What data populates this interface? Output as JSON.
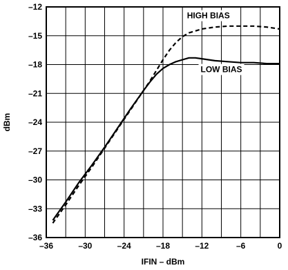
{
  "chart_data": {
    "type": "line",
    "xlabel": "IFIN – dBm",
    "ylabel": "dBm",
    "xlim": [
      -36,
      0
    ],
    "ylim": [
      -36,
      -12
    ],
    "grid": true,
    "x_ticks": [
      -36,
      -30,
      -24,
      -18,
      -12,
      -6,
      0
    ],
    "x_tick_labels": [
      "–36",
      "–30",
      "–24",
      "–18",
      "–12",
      "–6",
      "0"
    ],
    "y_ticks": [
      -12,
      -15,
      -18,
      -21,
      -24,
      -27,
      -30,
      -33,
      -36
    ],
    "y_tick_labels": [
      "–12",
      "–15",
      "–18",
      "–21",
      "–24",
      "–27",
      "–30",
      "–33",
      "–36"
    ],
    "series": [
      {
        "name": "HIGH BIAS",
        "line_style": "dashed",
        "x": [
          -35,
          -33,
          -31,
          -29,
          -27,
          -25,
          -23,
          -21,
          -20,
          -19,
          -18,
          -17,
          -16,
          -15,
          -14,
          -13,
          -12,
          -11,
          -10,
          -8,
          -6,
          -4,
          -2,
          0
        ],
        "y": [
          -34.5,
          -32.6,
          -30.6,
          -28.7,
          -26.7,
          -24.7,
          -22.7,
          -20.7,
          -19.7,
          -18.6,
          -17.5,
          -16.5,
          -15.7,
          -15.1,
          -14.7,
          -14.5,
          -14.3,
          -14.2,
          -14.1,
          -14.0,
          -14.0,
          -14.0,
          -14.1,
          -14.3
        ]
      },
      {
        "name": "LOW BIAS",
        "line_style": "solid",
        "x": [
          -35,
          -33,
          -31,
          -29,
          -27,
          -25,
          -23,
          -21,
          -20,
          -19,
          -18,
          -17,
          -16,
          -15,
          -14,
          -13,
          -12,
          -11,
          -10,
          -8,
          -6,
          -4,
          -2,
          0
        ],
        "y": [
          -34.2,
          -32.3,
          -30.3,
          -28.5,
          -26.6,
          -24.6,
          -22.6,
          -20.7,
          -19.8,
          -19.0,
          -18.4,
          -18.0,
          -17.7,
          -17.5,
          -17.3,
          -17.3,
          -17.4,
          -17.5,
          -17.6,
          -17.7,
          -17.8,
          -17.8,
          -17.9,
          -17.9
        ]
      }
    ],
    "annotations": [
      {
        "text": "HIGH BIAS",
        "x": -11,
        "y": -13.2
      },
      {
        "text": "LOW BIAS",
        "x": -9,
        "y": -18.8
      }
    ]
  }
}
